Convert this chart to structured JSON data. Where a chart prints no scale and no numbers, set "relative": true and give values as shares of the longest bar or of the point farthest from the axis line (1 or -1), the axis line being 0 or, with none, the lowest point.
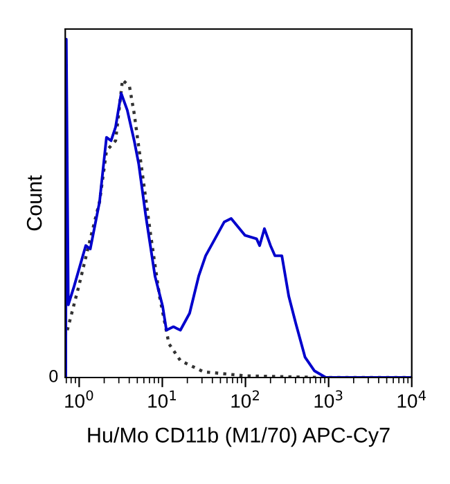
{
  "chart_data": {
    "type": "line",
    "relative": true,
    "xlabel": "Hu/Mo CD11b (M1/70) APC-Cy7",
    "ylabel": "Count",
    "log": "x",
    "xlim": [
      0.68,
      10000
    ],
    "xticks": [
      {
        "value": 1,
        "label": "10$^{0}$"
      },
      {
        "value": 10,
        "label": "10$^{1}$"
      },
      {
        "value": 100,
        "label": "10$^{2}$"
      },
      {
        "value": 1000,
        "label": "10$^{3}$"
      },
      {
        "value": 10000,
        "label": "10$^{4}$"
      }
    ],
    "annotations": [
      "0"
    ],
    "grid": false,
    "legend": false,
    "marker": "none",
    "series": [
      {
        "color": "#333333",
        "line_style": "dotted",
        "x": [
          0.72,
          0.99,
          1.27,
          1.76,
          2.13,
          2.74,
          3.32,
          4.03,
          4.59,
          5.56,
          7.16,
          9.26,
          12,
          16.5,
          31.3,
          99,
          926,
          10000
        ],
        "values": [
          0.14,
          0.27,
          0.38,
          0.52,
          0.67,
          0.7,
          0.88,
          0.86,
          0.78,
          0.63,
          0.43,
          0.24,
          0.1,
          0.05,
          0.017,
          0.005,
          0,
          0
        ]
      },
      {
        "color": "#0000cc",
        "line_style": "solid",
        "x": [
          0.69,
          0.7,
          0.74,
          0.87,
          1.2,
          1.36,
          1.76,
          2.13,
          2.42,
          2.74,
          3.2,
          3.79,
          4.59,
          5.21,
          6.31,
          8.16,
          10.1,
          11.2,
          13.6,
          16.5,
          21.3,
          27.4,
          33.2,
          43,
          55.6,
          67.3,
          98.9,
          136,
          148,
          169,
          200,
          226,
          274,
          332,
          403,
          521,
          673,
          926,
          10000
        ],
        "values": [
          0,
          1.0,
          0.215,
          0.27,
          0.39,
          0.38,
          0.52,
          0.71,
          0.7,
          0.74,
          0.84,
          0.79,
          0.7,
          0.63,
          0.48,
          0.3,
          0.21,
          0.14,
          0.15,
          0.14,
          0.19,
          0.3,
          0.36,
          0.41,
          0.46,
          0.47,
          0.42,
          0.41,
          0.39,
          0.44,
          0.39,
          0.36,
          0.36,
          0.24,
          0.16,
          0.06,
          0.02,
          0,
          0
        ]
      }
    ]
  }
}
